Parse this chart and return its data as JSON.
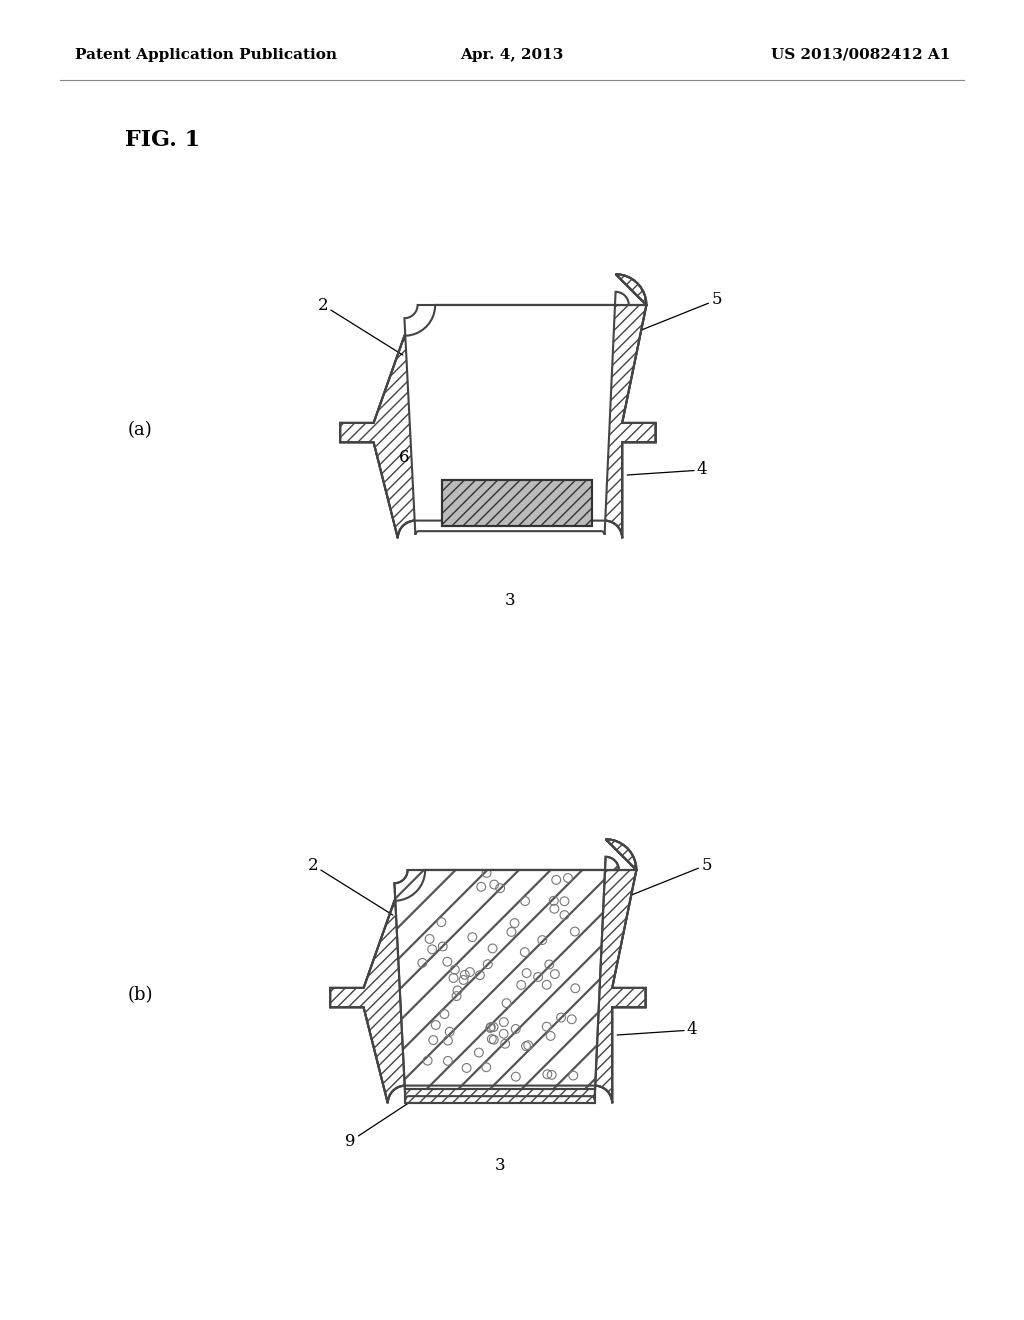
{
  "background_color": "#ffffff",
  "header_left": "Patent Application Publication",
  "header_center": "Apr. 4, 2013",
  "header_right": "US 2013/0082412 A1",
  "fig_label": "FIG. 1",
  "fig_a_label": "(a)",
  "fig_b_label": "(b)",
  "line_color": "#444444",
  "wall_hatch": "///",
  "foam_hatch": "///"
}
